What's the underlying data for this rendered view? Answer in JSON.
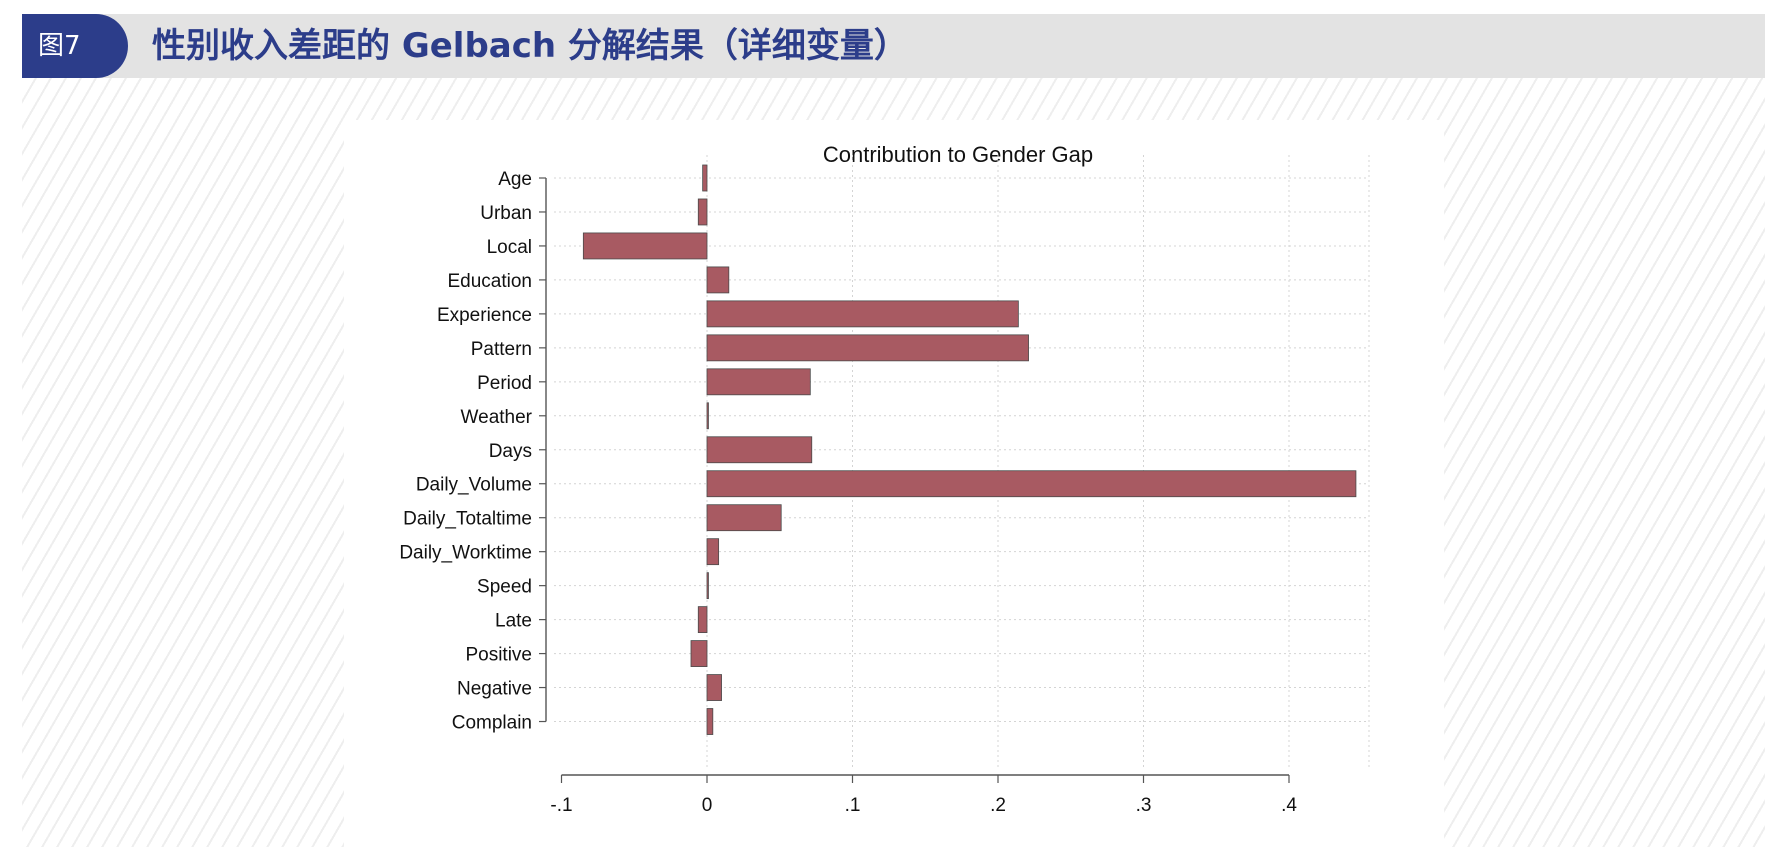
{
  "header": {
    "badge": "图7",
    "title": "性别收入差距的 Gelbach 分解结果（详细变量）",
    "badge_color": "#2c3d8a",
    "band_color": "#e3e3e3"
  },
  "chart_data": {
    "type": "bar",
    "orientation": "horizontal",
    "title": "Contribution to Gender Gap",
    "xlabel": "",
    "ylabel": "",
    "categories": [
      "Age",
      "Urban",
      "Local",
      "Education",
      "Experience",
      "Pattern",
      "Period",
      "Weather",
      "Days",
      "Daily_Volume",
      "Daily_Totaltime",
      "Daily_Worktime",
      "Speed",
      "Late",
      "Positive",
      "Negative",
      "Complain"
    ],
    "values": [
      -0.003,
      -0.006,
      -0.085,
      0.015,
      0.214,
      0.221,
      0.071,
      0.001,
      0.072,
      0.446,
      0.051,
      0.008,
      0.001,
      -0.006,
      -0.011,
      0.01,
      0.004
    ],
    "xlim": [
      -0.1,
      0.45
    ],
    "xticks": [
      -0.1,
      0,
      0.1,
      0.2,
      0.3,
      0.4
    ],
    "xtick_labels": [
      "-.1",
      "0",
      ".1",
      ".2",
      ".3",
      ".4"
    ],
    "grid": true,
    "bar_color": "#a85a62",
    "bar_edge_color": "#4a4a4a"
  }
}
